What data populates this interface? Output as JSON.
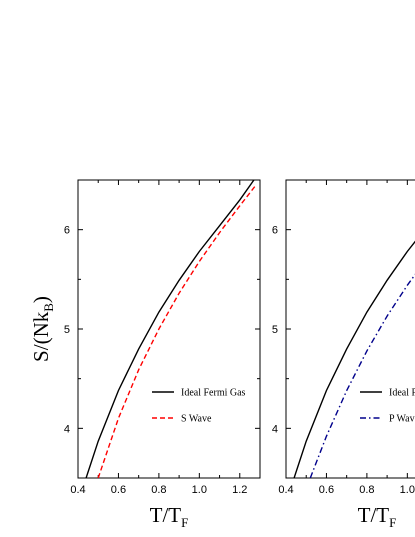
{
  "chart_data": [
    {
      "type": "line",
      "title": "",
      "ylabel": {
        "main": "S/(Nk",
        "sub": "B",
        "close": ")"
      },
      "xlabel": {
        "main": "T/T",
        "sub": "F"
      },
      "xlim": [
        0.4,
        1.3
      ],
      "ylim": [
        3.5,
        6.5
      ],
      "xticks": [
        "0.4",
        "0.6",
        "0.8",
        "1.0",
        "1.2"
      ],
      "xtick_values": [
        0.4,
        0.6,
        0.8,
        1.0,
        1.2
      ],
      "yticks": [
        "4",
        "5",
        "6"
      ],
      "ytick_values": [
        4,
        5,
        6
      ],
      "legend_position": "bottom-right",
      "series": [
        {
          "name": "Ideal Fermi Gas",
          "color": "#000000",
          "style": "solid",
          "x": [
            0.44,
            0.5,
            0.6,
            0.7,
            0.8,
            0.9,
            1.0,
            1.1,
            1.2,
            1.27
          ],
          "y": [
            3.5,
            3.87,
            4.38,
            4.8,
            5.17,
            5.49,
            5.78,
            6.04,
            6.3,
            6.5
          ]
        },
        {
          "name": "S Wave",
          "color": "#ff0000",
          "style": "dashed",
          "x": [
            0.5,
            0.6,
            0.7,
            0.8,
            0.9,
            1.0,
            1.1,
            1.2,
            1.28
          ],
          "y": [
            3.5,
            4.1,
            4.59,
            5.0,
            5.36,
            5.68,
            5.97,
            6.24,
            6.45
          ]
        }
      ]
    },
    {
      "type": "line",
      "title": "",
      "ylabel": {
        "main": "",
        "sub": "",
        "close": ""
      },
      "xlabel": {
        "main": "T/T",
        "sub": "F"
      },
      "xlim": [
        0.4,
        1.3
      ],
      "ylim": [
        3.5,
        6.5
      ],
      "xticks": [
        "0.4",
        "0.6",
        "0.8",
        "1.0"
      ],
      "xtick_values": [
        0.4,
        0.6,
        0.8,
        1.0
      ],
      "yticks": [
        "4",
        "5",
        "6"
      ],
      "ytick_values": [
        4,
        5,
        6
      ],
      "legend_position": "bottom-right",
      "series": [
        {
          "name": "Ideal Fermi Gas",
          "color": "#000000",
          "style": "solid",
          "x": [
            0.44,
            0.5,
            0.6,
            0.7,
            0.8,
            0.9,
            1.0,
            1.1
          ],
          "y": [
            3.5,
            3.87,
            4.38,
            4.8,
            5.17,
            5.49,
            5.78,
            6.04
          ]
        },
        {
          "name": "P Wave",
          "color": "#00008b",
          "style": "dashdot",
          "x": [
            0.52,
            0.6,
            0.7,
            0.8,
            0.9,
            1.0,
            1.1
          ],
          "y": [
            3.5,
            3.92,
            4.38,
            4.78,
            5.13,
            5.44,
            5.72
          ]
        }
      ]
    }
  ]
}
